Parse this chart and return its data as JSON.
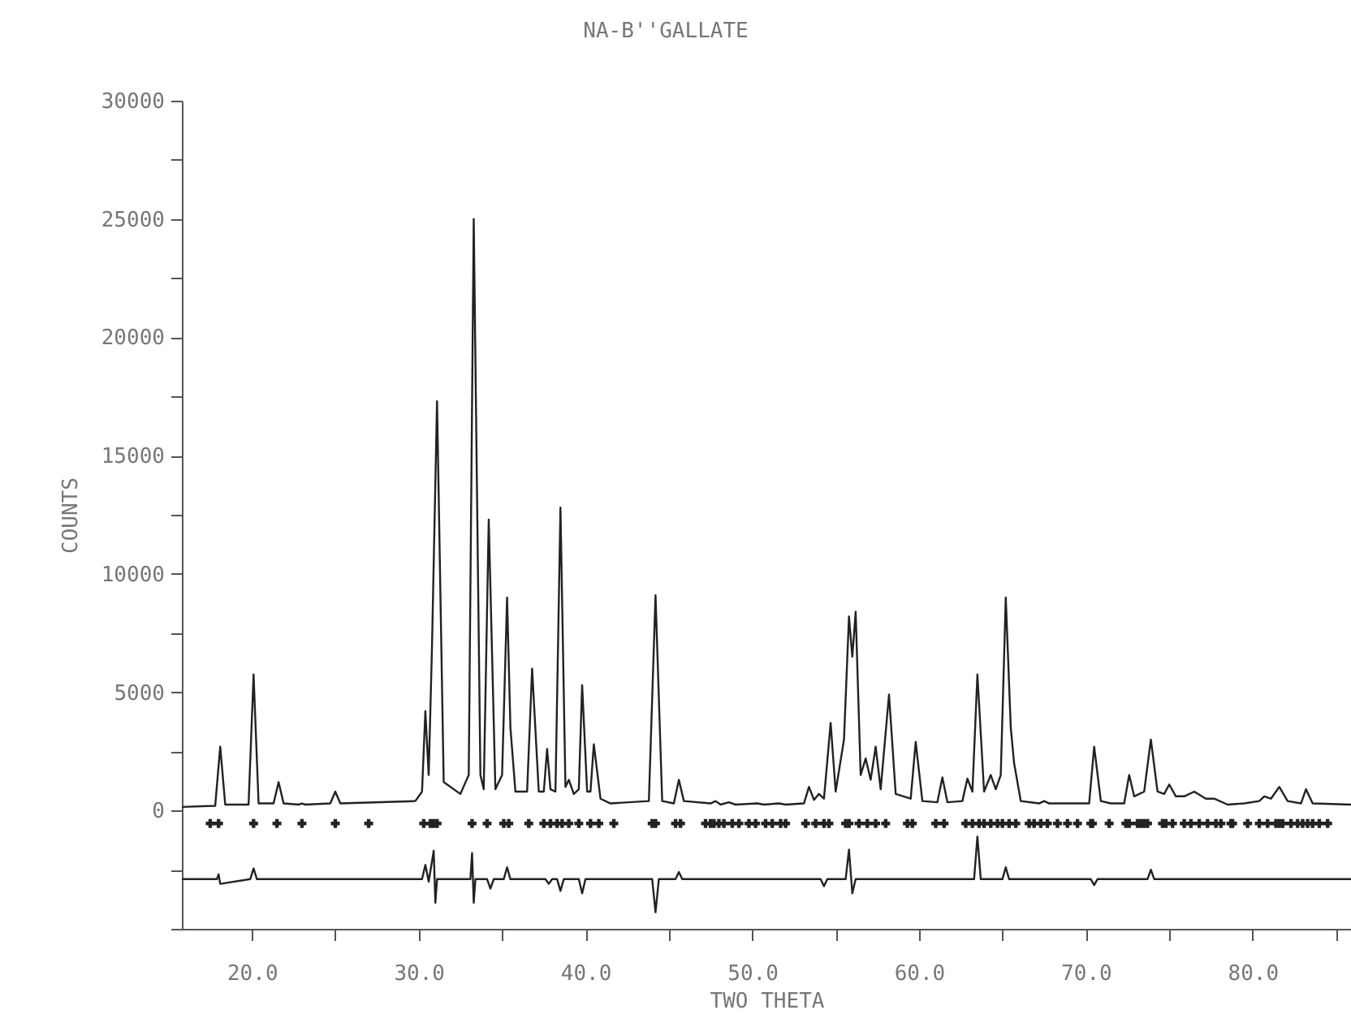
{
  "chart_data": {
    "type": "line",
    "title": "NA-B''GALLATE",
    "xlabel": "TWO THETA",
    "ylabel": "COUNTS",
    "xlim": [
      15.8,
      85.9
    ],
    "xticks": [
      {
        "value": 20,
        "label": "20.0"
      },
      {
        "value": 25,
        "label": null
      },
      {
        "value": 30,
        "label": "30.0"
      },
      {
        "value": 35,
        "label": null
      },
      {
        "value": 40,
        "label": "40.0"
      },
      {
        "value": 45,
        "label": null
      },
      {
        "value": 50,
        "label": "50.0"
      },
      {
        "value": 55,
        "label": null
      },
      {
        "value": 60,
        "label": "60.0"
      },
      {
        "value": 65,
        "label": null
      },
      {
        "value": 70,
        "label": "70.0"
      },
      {
        "value": 75,
        "label": null
      },
      {
        "value": 80,
        "label": "80.0"
      },
      {
        "value": 85,
        "label": null
      }
    ],
    "ylim": [
      -5000,
      30000
    ],
    "yticks": [
      {
        "value": -5000,
        "label": null
      },
      {
        "value": -2500,
        "label": null
      },
      0,
      {
        "value": 2500,
        "label": null
      },
      5000,
      {
        "value": 7500,
        "label": null
      },
      10000,
      {
        "value": 12500,
        "label": null
      },
      15000,
      {
        "value": 17500,
        "label": null
      },
      20000,
      {
        "value": 22500,
        "label": null
      },
      25000,
      {
        "value": 27500,
        "label": null
      },
      30000
    ],
    "grid": false,
    "series": [
      {
        "color": "#222222",
        "x": [
          15.8,
          17.8,
          18.1,
          18.4,
          19.8,
          20.1,
          20.4,
          21.3,
          21.6,
          21.9,
          22.8,
          23.0,
          23.2,
          24.7,
          25.0,
          25.3,
          29.8,
          30.2,
          30.4,
          30.6,
          30.8,
          31.1,
          31.5,
          32.5,
          33.0,
          33.3,
          33.7,
          33.9,
          34.2,
          34.6,
          35.0,
          35.3,
          35.5,
          35.8,
          36.5,
          36.8,
          37.2,
          37.5,
          37.7,
          37.9,
          38.2,
          38.5,
          38.8,
          39.0,
          39.3,
          39.6,
          39.8,
          40.1,
          40.3,
          40.5,
          40.9,
          41.5,
          43.8,
          44.2,
          44.6,
          45.3,
          45.6,
          45.9,
          47.5,
          47.8,
          48.1,
          48.6,
          49.0,
          50.3,
          50.7,
          51.6,
          52.0,
          53.1,
          53.4,
          53.7,
          54.0,
          54.3,
          54.7,
          55.0,
          55.5,
          55.8,
          56.0,
          56.2,
          56.5,
          56.8,
          57.1,
          57.4,
          57.7,
          58.2,
          58.6,
          59.5,
          59.8,
          60.2,
          61.1,
          61.4,
          61.7,
          62.6,
          62.9,
          63.2,
          63.5,
          63.9,
          64.3,
          64.6,
          64.9,
          65.2,
          65.5,
          65.7,
          66.1,
          67.2,
          67.5,
          67.8,
          70.2,
          70.5,
          70.9,
          71.5,
          72.3,
          72.6,
          72.9,
          73.5,
          73.9,
          74.3,
          74.7,
          75.0,
          75.4,
          75.9,
          76.5,
          77.2,
          77.7,
          78.5,
          79.5,
          80.4,
          80.7,
          81.1,
          81.6,
          82.1,
          82.9,
          83.2,
          83.6,
          85.9
        ],
        "values": [
          150,
          200,
          2700,
          250,
          250,
          5750,
          300,
          300,
          1200,
          300,
          250,
          300,
          250,
          300,
          800,
          300,
          400,
          800,
          4200,
          1500,
          7000,
          17300,
          1200,
          700,
          1500,
          25000,
          1500,
          900,
          12300,
          900,
          1500,
          9000,
          3500,
          800,
          800,
          6000,
          800,
          800,
          2600,
          900,
          800,
          12800,
          1000,
          1300,
          700,
          900,
          5300,
          800,
          800,
          2800,
          500,
          300,
          400,
          9100,
          400,
          300,
          1300,
          400,
          300,
          400,
          250,
          350,
          250,
          300,
          250,
          300,
          250,
          300,
          1000,
          450,
          700,
          500,
          3700,
          800,
          3000,
          8200,
          6500,
          8400,
          1500,
          2200,
          1300,
          2700,
          900,
          4900,
          700,
          500,
          2900,
          400,
          350,
          1400,
          350,
          400,
          1350,
          800,
          5750,
          800,
          1500,
          900,
          1500,
          9000,
          3500,
          2000,
          400,
          300,
          400,
          300,
          300,
          2700,
          400,
          300,
          300,
          1500,
          600,
          800,
          3000,
          800,
          700,
          1100,
          600,
          600,
          800,
          500,
          500,
          250,
          300,
          400,
          600,
          500,
          1000,
          400,
          300,
          900,
          300,
          250
        ]
      },
      {
        "type": "line",
        "color": "#222222",
        "x": [
          15.8,
          17.9,
          18.0,
          18.1,
          19.9,
          20.1,
          20.3,
          30.2,
          30.4,
          30.6,
          30.9,
          31.0,
          31.1,
          31.3,
          33.1,
          33.2,
          33.3,
          33.4,
          34.1,
          34.3,
          34.5,
          35.1,
          35.3,
          35.5,
          37.6,
          37.8,
          38.0,
          38.3,
          38.5,
          38.7,
          39.6,
          39.8,
          40.0,
          44.0,
          44.2,
          44.4,
          45.4,
          45.6,
          45.8,
          54.1,
          54.3,
          54.5,
          55.6,
          55.8,
          56.0,
          56.2,
          63.3,
          63.5,
          63.7,
          65.0,
          65.2,
          65.4,
          70.3,
          70.5,
          70.7,
          73.7,
          73.9,
          74.1,
          85.9
        ],
        "values": [
          -2900,
          -2900,
          -2700,
          -3100,
          -2900,
          -2450,
          -2900,
          -2900,
          -2300,
          -3000,
          -1700,
          -3900,
          -2900,
          -2900,
          -2900,
          -1800,
          -3900,
          -2900,
          -2900,
          -3300,
          -2900,
          -2900,
          -2400,
          -2900,
          -2900,
          -3100,
          -2900,
          -2900,
          -3400,
          -2900,
          -2900,
          -3500,
          -2900,
          -2900,
          -4300,
          -2900,
          -2900,
          -2600,
          -2900,
          -2900,
          -3200,
          -2900,
          -2900,
          -1650,
          -3500,
          -2900,
          -2900,
          -1100,
          -2900,
          -2900,
          -2400,
          -2900,
          -2900,
          -3150,
          -2900,
          -2900,
          -2500,
          -2900,
          -2900
        ]
      },
      {
        "type": "scatter",
        "color": "#222222",
        "x": [
          17.5,
          18.0,
          20.1,
          21.5,
          23.0,
          25.0,
          27.0,
          30.3,
          30.7,
          30.9,
          31.1,
          33.2,
          34.1,
          35.1,
          35.4,
          36.6,
          37.5,
          37.9,
          38.3,
          38.6,
          39.0,
          39.6,
          40.3,
          40.8,
          41.7,
          44.0,
          44.2,
          45.4,
          45.7,
          47.2,
          47.5,
          47.7,
          48.0,
          48.3,
          48.8,
          49.2,
          49.8,
          50.2,
          50.8,
          51.2,
          51.7,
          52.0,
          53.2,
          53.8,
          54.3,
          54.6,
          55.6,
          55.8,
          56.4,
          56.9,
          57.4,
          58.0,
          59.3,
          59.6,
          61.0,
          61.5,
          62.8,
          63.2,
          63.6,
          63.9,
          64.3,
          64.7,
          65.0,
          65.4,
          65.8,
          66.6,
          66.9,
          67.3,
          67.7,
          68.3,
          68.9,
          69.5,
          70.3,
          70.4,
          71.4,
          72.4,
          72.6,
          73.1,
          73.3,
          73.5,
          73.7,
          74.6,
          74.8,
          75.2,
          75.9,
          76.3,
          76.8,
          77.3,
          77.8,
          78.1,
          78.7,
          78.8,
          79.7,
          80.4,
          80.9,
          81.4,
          81.6,
          81.8,
          82.3,
          82.7,
          83.0,
          83.3,
          83.6,
          84.0,
          84.5
        ],
        "values": [
          -550,
          -550,
          -550,
          -550,
          -550,
          -550,
          -550,
          -550,
          -550,
          -550,
          -550,
          -550,
          -550,
          -550,
          -550,
          -550,
          -550,
          -550,
          -550,
          -550,
          -550,
          -550,
          -550,
          -550,
          -550,
          -550,
          -550,
          -550,
          -550,
          -550,
          -550,
          -550,
          -550,
          -550,
          -550,
          -550,
          -550,
          -550,
          -550,
          -550,
          -550,
          -550,
          -550,
          -550,
          -550,
          -550,
          -550,
          -550,
          -550,
          -550,
          -550,
          -550,
          -550,
          -550,
          -550,
          -550,
          -550,
          -550,
          -550,
          -550,
          -550,
          -550,
          -550,
          -550,
          -550,
          -550,
          -550,
          -550,
          -550,
          -550,
          -550,
          -550,
          -550,
          -550,
          -550,
          -550,
          -550,
          -550,
          -550,
          -550,
          -550,
          -550,
          -550,
          -550,
          -550,
          -550,
          -550,
          -550,
          -550,
          -550,
          -550,
          -550,
          -550,
          -550,
          -550,
          -550,
          -550,
          -550,
          -550,
          -550,
          -550,
          -550,
          -550,
          -550,
          -550
        ]
      }
    ]
  }
}
